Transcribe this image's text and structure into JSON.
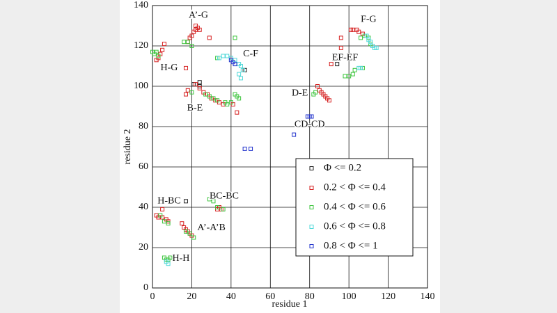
{
  "chart_data": {
    "type": "scatter",
    "x_label": "residue 1",
    "y_label": "residue 2",
    "xlim": [
      0,
      140
    ],
    "ylim": [
      0,
      140
    ],
    "xticks": [
      0,
      20,
      40,
      60,
      80,
      100,
      120,
      140
    ],
    "yticks": [
      0,
      20,
      40,
      60,
      80,
      100,
      120,
      140
    ],
    "grid": true,
    "legend": "lower right",
    "series": [
      {
        "name": "Φ <= 0.2",
        "color": "#222222",
        "x": [
          21,
          24,
          24,
          17,
          47,
          94
        ],
        "y": [
          101,
          102,
          100,
          43,
          108,
          111
        ]
      },
      {
        "name": "0.2 < Φ <= 0.4",
        "color": "#d62020",
        "x": [
          18,
          19,
          20,
          21,
          22,
          23,
          24,
          22,
          29,
          5,
          6,
          3,
          4,
          2,
          17,
          18,
          22,
          24,
          26,
          28,
          30,
          32,
          34,
          36,
          41,
          43,
          17,
          84,
          85,
          86,
          87,
          88,
          89,
          90,
          96,
          96,
          94,
          91,
          101,
          102,
          104,
          105,
          107,
          2,
          3,
          5,
          5,
          7,
          8,
          15,
          16,
          17,
          18,
          19,
          20,
          34,
          35,
          33
        ],
        "y": [
          122,
          124,
          125,
          127,
          128,
          129,
          128,
          130,
          124,
          118,
          121,
          114,
          116,
          113,
          96,
          98,
          101,
          99,
          97,
          96,
          94,
          93,
          92,
          91,
          91,
          87,
          109,
          100,
          98,
          97,
          96,
          95,
          94,
          93,
          119,
          124,
          115,
          111,
          128,
          128,
          128,
          127,
          126,
          36,
          35,
          35,
          39,
          34,
          33,
          32,
          30,
          29,
          28,
          27,
          26,
          40,
          39,
          39
        ]
      },
      {
        "name": "0.4 < Φ <= 0.6",
        "color": "#3cc43c",
        "x": [
          0,
          1,
          2,
          3,
          16,
          18,
          20,
          20,
          27,
          29,
          31,
          33,
          37,
          38,
          40,
          42,
          43,
          44,
          42,
          33,
          82,
          83,
          98,
          100,
          102,
          103,
          107,
          106,
          108,
          110,
          111,
          6,
          8,
          4,
          17,
          19,
          21,
          29,
          31,
          33,
          36,
          6,
          7,
          8,
          9
        ],
        "y": [
          117,
          116,
          117,
          115,
          122,
          122,
          120,
          97,
          96,
          95,
          94,
          93,
          92,
          91,
          92,
          96,
          95,
          94,
          124,
          114,
          96,
          97,
          105,
          105,
          106,
          108,
          109,
          124,
          125,
          124,
          121,
          33,
          32,
          36,
          28,
          27,
          25,
          44,
          43,
          40,
          39,
          15,
          14,
          14,
          15
        ]
      },
      {
        "name": "0.6 < Φ <= 0.8",
        "color": "#4fd8d8",
        "x": [
          34,
          36,
          38,
          40,
          42,
          44,
          45,
          46,
          44,
          45,
          109,
          110,
          111,
          112,
          113,
          114,
          105,
          106,
          7,
          8
        ],
        "y": [
          114,
          115,
          115,
          114,
          113,
          111,
          110,
          108,
          106,
          104,
          125,
          123,
          122,
          120,
          119,
          119,
          109,
          109,
          13,
          12
        ]
      },
      {
        "name": "0.8 < Φ <= 1",
        "color": "#2233cc",
        "x": [
          40,
          41,
          42,
          79,
          80,
          81,
          72,
          47,
          50
        ],
        "y": [
          113,
          112,
          111,
          85,
          85,
          85,
          76,
          69,
          69
        ]
      }
    ],
    "annotations": [
      {
        "text": "A’-G",
        "x": 23.4,
        "y": 135
      },
      {
        "text": "C-F",
        "x": 50,
        "y": 116
      },
      {
        "text": "H-G",
        "x": 8.5,
        "y": 109
      },
      {
        "text": "B-E",
        "x": 21.6,
        "y": 89
      },
      {
        "text": "D-E",
        "x": 75,
        "y": 96.5
      },
      {
        "text": "EF-EF",
        "x": 98,
        "y": 114
      },
      {
        "text": "F-G",
        "x": 110,
        "y": 133
      },
      {
        "text": "CD-CD",
        "x": 80,
        "y": 81
      },
      {
        "text": "H-BC",
        "x": 8.5,
        "y": 43
      },
      {
        "text": "BC-BC",
        "x": 36.5,
        "y": 45.5
      },
      {
        "text": "A’-A’B",
        "x": 30,
        "y": 29.7
      },
      {
        "text": "H-H",
        "x": 14.5,
        "y": 14.5
      }
    ]
  }
}
